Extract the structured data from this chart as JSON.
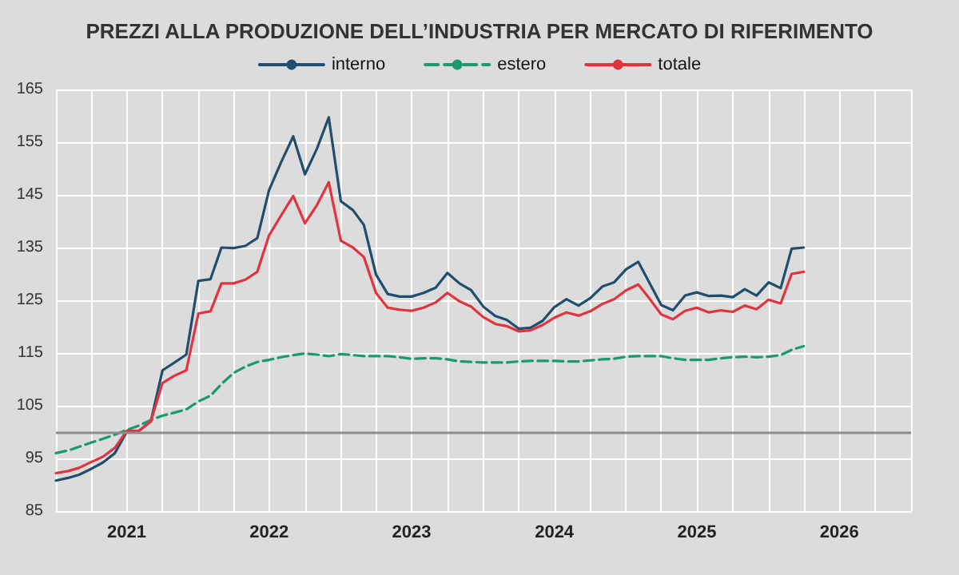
{
  "chart_data": {
    "type": "line",
    "title": "PREZZI ALLA PRODUZIONE DELL’INDUSTRIA PER MERCATO DI RIFERIMENTO",
    "x": [
      "2021-01",
      "2021-02",
      "2021-03",
      "2021-04",
      "2021-05",
      "2021-06",
      "2021-07",
      "2021-08",
      "2021-09",
      "2021-10",
      "2021-11",
      "2021-12",
      "2022-01",
      "2022-02",
      "2022-03",
      "2022-04",
      "2022-05",
      "2022-06",
      "2022-07",
      "2022-08",
      "2022-09",
      "2022-10",
      "2022-11",
      "2022-12",
      "2023-01",
      "2023-02",
      "2023-03",
      "2023-04",
      "2023-05",
      "2023-06",
      "2023-07",
      "2023-08",
      "2023-09",
      "2023-10",
      "2023-11",
      "2023-12",
      "2024-01",
      "2024-02",
      "2024-03",
      "2024-04",
      "2024-05",
      "2024-06",
      "2024-07",
      "2024-08",
      "2024-09",
      "2024-10",
      "2024-11",
      "2024-12",
      "2025-01",
      "2025-02",
      "2025-03",
      "2025-04",
      "2025-05",
      "2025-06",
      "2025-07",
      "2025-08",
      "2025-09",
      "2025-10",
      "2025-11",
      "2025-12",
      "2026-01",
      "2026-02",
      "2026-03",
      "2026-04"
    ],
    "series": [
      {
        "name": "interno",
        "color": "#1f4e6e",
        "line_style": "solid",
        "values": [
          90.8,
          91.3,
          91.9,
          93.0,
          94.2,
          96.0,
          100.0,
          100.2,
          102.0,
          111.7,
          113.2,
          114.7,
          128.7,
          129.0,
          135.0,
          134.9,
          135.3,
          136.8,
          145.9,
          151.2,
          156.1,
          148.9,
          153.8,
          159.7,
          143.8,
          142.1,
          139.3,
          129.9,
          126.2,
          125.7,
          125.7,
          126.4,
          127.4,
          130.2,
          128.2,
          126.9,
          123.8,
          122.0,
          121.3,
          119.6,
          119.8,
          121.1,
          123.7,
          125.2,
          124.0,
          125.4,
          127.6,
          128.4,
          130.9,
          132.3,
          128.4,
          124.1,
          123.1,
          125.9,
          126.5,
          125.8,
          125.9,
          125.6,
          127.1,
          125.9,
          128.4,
          127.3,
          134.8,
          135.0
        ]
      },
      {
        "name": "estero",
        "color": "#1a9a6e",
        "line_style": "dashed",
        "values": [
          96.0,
          96.5,
          97.2,
          98.0,
          98.7,
          99.5,
          100.4,
          101.2,
          102.3,
          103.1,
          103.7,
          104.3,
          105.8,
          106.9,
          109.1,
          111.2,
          112.4,
          113.3,
          113.7,
          114.2,
          114.6,
          114.9,
          114.7,
          114.4,
          114.8,
          114.6,
          114.4,
          114.4,
          114.4,
          114.2,
          113.9,
          114.0,
          114.0,
          113.8,
          113.4,
          113.3,
          113.2,
          113.2,
          113.2,
          113.4,
          113.5,
          113.5,
          113.5,
          113.4,
          113.4,
          113.6,
          113.8,
          113.9,
          114.3,
          114.4,
          114.4,
          114.4,
          114.0,
          113.7,
          113.7,
          113.7,
          114.0,
          114.2,
          114.3,
          114.2,
          114.3,
          114.6,
          115.6,
          116.3
        ]
      },
      {
        "name": "totale",
        "color": "#e0343f",
        "line_style": "solid",
        "values": [
          92.2,
          92.6,
          93.2,
          94.3,
          95.3,
          97.0,
          100.2,
          100.2,
          102.0,
          109.3,
          110.7,
          111.7,
          122.5,
          122.9,
          128.2,
          128.2,
          128.9,
          130.4,
          137.3,
          141.1,
          144.8,
          139.6,
          143.1,
          147.4,
          136.3,
          135.0,
          133.2,
          126.4,
          123.6,
          123.2,
          123.0,
          123.6,
          124.6,
          126.4,
          124.8,
          123.8,
          121.8,
          120.5,
          120.1,
          119.1,
          119.3,
          120.3,
          121.7,
          122.7,
          122.1,
          122.9,
          124.3,
          125.2,
          126.9,
          128.0,
          125.4,
          122.3,
          121.4,
          123.0,
          123.6,
          122.7,
          123.1,
          122.8,
          124.0,
          123.3,
          125.1,
          124.4,
          130.0,
          130.4
        ]
      }
    ],
    "xlim": [
      "2021-01",
      "2027-01"
    ],
    "xticks": [
      {
        "value": "2021-01",
        "label": null
      },
      {
        "value": "2021-04",
        "label": null
      },
      {
        "value": "2021-07",
        "label": "2021"
      },
      {
        "value": "2021-10",
        "label": null
      },
      {
        "value": "2022-01",
        "label": null
      },
      {
        "value": "2022-04",
        "label": null
      },
      {
        "value": "2022-07",
        "label": "2022"
      },
      {
        "value": "2022-10",
        "label": null
      },
      {
        "value": "2023-01",
        "label": null
      },
      {
        "value": "2023-04",
        "label": null
      },
      {
        "value": "2023-07",
        "label": "2023"
      },
      {
        "value": "2023-10",
        "label": null
      },
      {
        "value": "2024-01",
        "label": null
      },
      {
        "value": "2024-04",
        "label": null
      },
      {
        "value": "2024-07",
        "label": "2024"
      },
      {
        "value": "2024-10",
        "label": null
      },
      {
        "value": "2025-01",
        "label": null
      },
      {
        "value": "2025-04",
        "label": null
      },
      {
        "value": "2025-07",
        "label": "2025"
      },
      {
        "value": "2025-10",
        "label": null
      },
      {
        "value": "2026-01",
        "label": null
      },
      {
        "value": "2026-04",
        "label": null
      },
      {
        "value": "2026-07",
        "label": "2026"
      },
      {
        "value": "2026-10",
        "label": null
      },
      {
        "value": "2027-01",
        "label": null
      }
    ],
    "ylim": [
      85,
      165
    ],
    "yticks": [
      85,
      95,
      105,
      115,
      125,
      135,
      145,
      155,
      165
    ],
    "ref_lines": [
      {
        "axis": "y",
        "value": 100,
        "color": "#8c8c8c"
      }
    ],
    "grid": true,
    "legend": "top",
    "marker": "none"
  }
}
